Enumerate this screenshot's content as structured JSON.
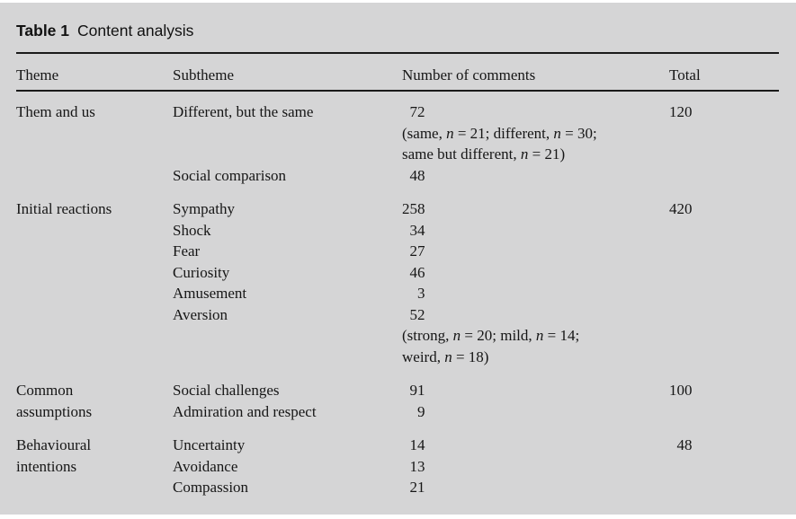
{
  "caption": {
    "label": "Table 1",
    "title": "Content analysis"
  },
  "colors": {
    "panel_bg": "#d5d5d6",
    "text": "#161616",
    "rule": "#1a1a1a"
  },
  "table": {
    "columns": [
      "Theme",
      "Subtheme",
      "Number of comments",
      "Total"
    ],
    "groups": [
      {
        "theme_lines": [
          "Them and us"
        ],
        "total": "120",
        "rows": [
          {
            "subtheme": "Different, but the same",
            "count": "72",
            "note_lines": [
              "(same, n = 21; different, n = 30;",
              "same but different, n = 21)"
            ]
          },
          {
            "subtheme": "Social comparison",
            "count": "48"
          }
        ]
      },
      {
        "theme_lines": [
          "Initial reactions"
        ],
        "total": "420",
        "rows": [
          {
            "subtheme": "Sympathy",
            "count": "258"
          },
          {
            "subtheme": "Shock",
            "count": "34"
          },
          {
            "subtheme": "Fear",
            "count": "27"
          },
          {
            "subtheme": "Curiosity",
            "count": "46"
          },
          {
            "subtheme": "Amusement",
            "count": "3"
          },
          {
            "subtheme": "Aversion",
            "count": "52",
            "note_lines": [
              "(strong, n = 20; mild, n = 14;",
              "weird, n = 18)"
            ]
          }
        ]
      },
      {
        "theme_lines": [
          "Common",
          "assumptions"
        ],
        "total": "100",
        "rows": [
          {
            "subtheme": "Social challenges",
            "count": "91"
          },
          {
            "subtheme": "Admiration and respect",
            "count": "9"
          }
        ]
      },
      {
        "theme_lines": [
          "Behavioural",
          "intentions"
        ],
        "total": "48",
        "rows": [
          {
            "subtheme": "Uncertainty",
            "count": "14"
          },
          {
            "subtheme": "Avoidance",
            "count": "13"
          },
          {
            "subtheme": "Compassion",
            "count": "21"
          }
        ]
      }
    ]
  }
}
